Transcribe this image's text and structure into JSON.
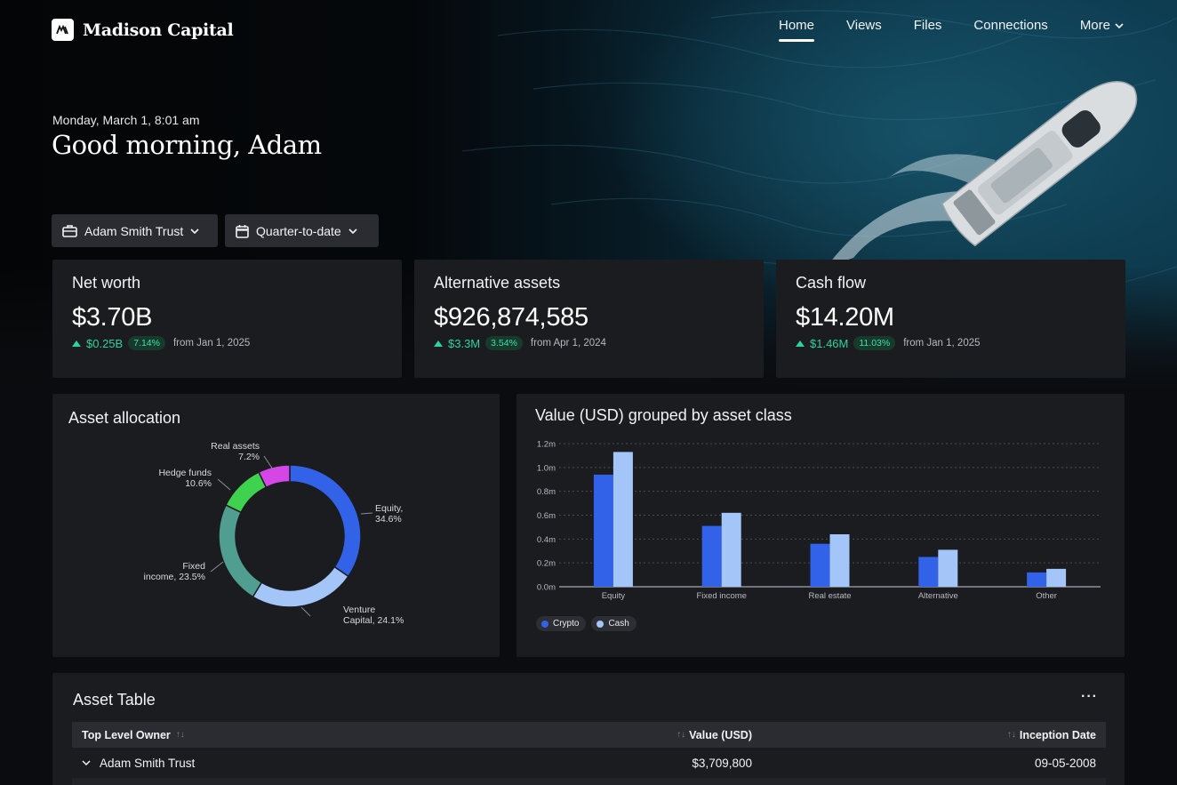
{
  "brand": {
    "name": "Madison Capital",
    "logo_icon": "madison-monogram-icon"
  },
  "nav": {
    "items": [
      {
        "label": "Home",
        "active": true
      },
      {
        "label": "Views",
        "active": false
      },
      {
        "label": "Files",
        "active": false
      },
      {
        "label": "Connections",
        "active": false
      },
      {
        "label": "More",
        "active": false,
        "icon": "chevron-down-icon"
      }
    ]
  },
  "hero": {
    "date": "Monday, March 1, 8:01 am",
    "greeting": "Good morning, Adam"
  },
  "filters": {
    "entity": {
      "label": "Adam Smith Trust",
      "icon": "briefcase-icon"
    },
    "period": {
      "label": "Quarter-to-date",
      "icon": "calendar-icon"
    }
  },
  "stats": [
    {
      "title": "Net worth",
      "value": "$3.70B",
      "delta": "$0.25B",
      "pct": "7.14%",
      "from": "from Jan 1, 2025"
    },
    {
      "title": "Alternative assets",
      "value": "$926,874,585",
      "delta": "$3.3M",
      "pct": "3.54%",
      "from": "from Apr 1, 2024"
    },
    {
      "title": "Cash flow",
      "value": "$14.20M",
      "delta": "$1.46M",
      "pct": "11.03%",
      "from": "from Jan 1, 2025"
    }
  ],
  "colors": {
    "accent_green": "#2bd49a",
    "equity": "#3060e8",
    "venture": "#9fc2f7",
    "fixed_income": "#4f9e8f",
    "hedge": "#3fd24f",
    "real_assets": "#d446e6"
  },
  "chart_data": [
    {
      "type": "pie",
      "title": "Asset allocation",
      "slices": [
        {
          "label_line1": "Equity,",
          "label_line2": "34.6%",
          "value": 34.6,
          "color": "#3262e8"
        },
        {
          "label_line1": "Venture",
          "label_line2": "Capital, 24.1%",
          "value": 24.1,
          "color": "#a3c5f8"
        },
        {
          "label_line1": "Fixed",
          "label_line2": "income, 23.5%",
          "value": 23.5,
          "color": "#4f9e8f"
        },
        {
          "label_line1": "Hedge funds",
          "label_line2": "10.6%",
          "value": 10.6,
          "color": "#3fd24f"
        },
        {
          "label_line1": "Real assets",
          "label_line2": "7.2%",
          "value": 7.2,
          "color": "#d446e6"
        }
      ]
    },
    {
      "type": "bar",
      "title": "Value (USD) grouped by asset class",
      "categories": [
        "Equity",
        "Fixed income",
        "Real estate",
        "Alternative",
        "Other"
      ],
      "series": [
        {
          "name": "Crypto",
          "values": [
            0.94,
            0.51,
            0.36,
            0.25,
            0.12
          ],
          "color": "#3262e8"
        },
        {
          "name": "Cash",
          "values": [
            1.13,
            0.62,
            0.44,
            0.31,
            0.15
          ],
          "color": "#a3c5f8"
        }
      ],
      "yticks": [
        "0.0m",
        "0.2m",
        "0.4m",
        "0.6m",
        "0.8m",
        "1.0m",
        "1.2m"
      ],
      "ylim": [
        0,
        1.2
      ],
      "legend": "bottom-left",
      "grid": true
    }
  ],
  "table": {
    "title": "Asset Table",
    "more_icon": "more-horizontal-icon",
    "columns": [
      "Top Level Owner",
      "Value (USD)",
      "Inception Date"
    ],
    "rows": [
      {
        "owner": "Adam Smith Trust",
        "value": "$3,709,800",
        "date": "09-05-2008"
      }
    ]
  }
}
